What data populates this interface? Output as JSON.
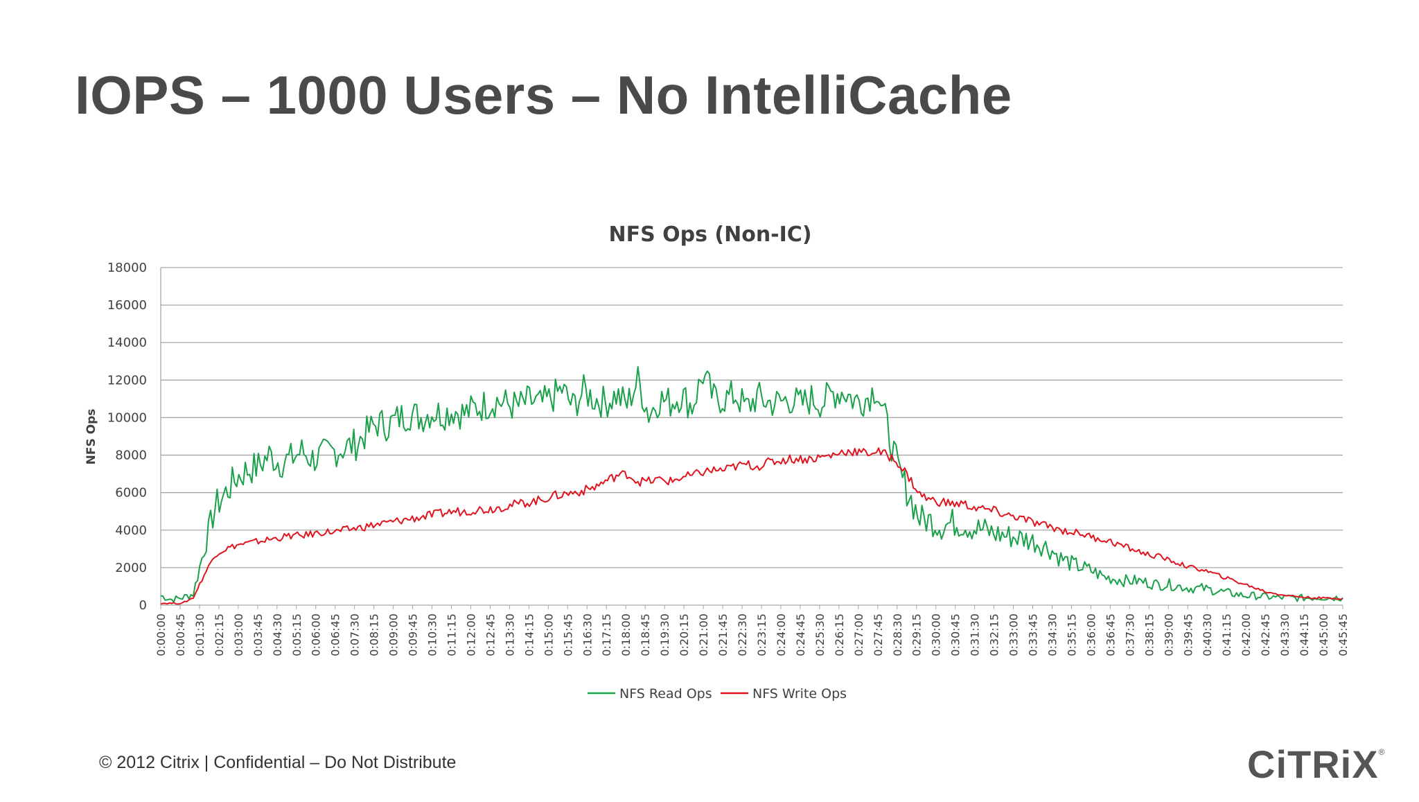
{
  "slide": {
    "title": "IOPS – 1000 Users – No IntelliCache",
    "footer": "© 2012 Citrix | Confidential – Do Not Distribute",
    "logo_text": "CiTRiX",
    "logo_mark": "®"
  },
  "colors": {
    "read": "#1aa04a",
    "write": "#e0141e",
    "grid": "#a6a6a6",
    "axis_text": "#404040",
    "title_text": "#4a4a4a"
  },
  "chart_data": {
    "type": "line",
    "title": "NFS Ops (Non-IC)",
    "xlabel": "",
    "ylabel": "NFS Ops",
    "ylim": [
      0,
      18000
    ],
    "yticks": [
      0,
      2000,
      4000,
      6000,
      8000,
      10000,
      12000,
      14000,
      16000,
      18000
    ],
    "grid": true,
    "legend_position": "bottom-center",
    "x_tick_labels": [
      "0:00:00",
      "0:00:45",
      "0:01:30",
      "0:02:15",
      "0:03:00",
      "0:03:45",
      "0:04:30",
      "0:05:15",
      "0:06:00",
      "0:06:45",
      "0:07:30",
      "0:08:15",
      "0:09:00",
      "0:09:45",
      "0:10:30",
      "0:11:15",
      "0:12:00",
      "0:12:45",
      "0:13:30",
      "0:14:15",
      "0:15:00",
      "0:15:45",
      "0:16:30",
      "0:17:15",
      "0:18:00",
      "0:18:45",
      "0:19:30",
      "0:20:15",
      "0:21:00",
      "0:21:45",
      "0:22:30",
      "0:23:15",
      "0:24:00",
      "0:24:45",
      "0:25:30",
      "0:26:15",
      "0:27:00",
      "0:27:45",
      "0:28:30",
      "0:29:15",
      "0:30:00",
      "0:30:45",
      "0:31:30",
      "0:32:15",
      "0:33:00",
      "0:33:45",
      "0:34:30",
      "0:35:15",
      "0:36:00",
      "0:36:45",
      "0:37:30",
      "0:38:15",
      "0:39:00",
      "0:39:45",
      "0:40:30",
      "0:41:15",
      "0:42:00",
      "0:42:45",
      "0:43:30",
      "0:44:15",
      "0:45:00",
      "0:45:45"
    ],
    "series": [
      {
        "name": "NFS Read Ops",
        "values": [
          500,
          300,
          400,
          600,
          3000,
          5200,
          6000,
          6800,
          7200,
          7400,
          8000,
          7600,
          7800,
          8200,
          7800,
          8000,
          8200,
          8400,
          8600,
          9200,
          9700,
          9600,
          10000,
          10200,
          10000,
          10300,
          10200,
          10400,
          10200,
          10500,
          10700,
          10900,
          10700,
          10600,
          10900,
          10700,
          11000,
          11500,
          10600,
          11400,
          11000,
          10800,
          11200,
          10700,
          12000,
          10200,
          11000,
          10800,
          11200,
          10600,
          12300,
          11000,
          11000,
          11200,
          10500,
          11100,
          10800,
          10800,
          11000,
          10700,
          11000,
          10800,
          11300,
          11400,
          10900,
          11000,
          11600,
          9500,
          7200,
          5900,
          4600,
          4500,
          4200,
          4400,
          4300,
          4100,
          4000,
          3800,
          3700,
          3600,
          3500,
          3300,
          3000,
          2500,
          2200,
          2000,
          1800,
          1500,
          1400,
          1300,
          1300,
          1200,
          1100,
          1100,
          1000,
          900,
          900,
          800,
          700,
          600,
          500,
          500,
          450,
          400,
          400,
          380,
          400,
          420,
          400,
          400
        ]
      },
      {
        "name": "NFS Write Ops",
        "values": [
          100,
          100,
          100,
          400,
          1600,
          2700,
          3000,
          3200,
          3300,
          3400,
          3500,
          3600,
          3700,
          3700,
          3800,
          3900,
          3900,
          4000,
          4100,
          4200,
          4300,
          4400,
          4500,
          4600,
          4700,
          4800,
          4900,
          5000,
          5000,
          5100,
          5100,
          5200,
          5300,
          5400,
          5500,
          5600,
          5800,
          5900,
          6000,
          6100,
          6300,
          6600,
          6900,
          7000,
          6600,
          6600,
          6700,
          6600,
          6800,
          6900,
          7100,
          7200,
          7200,
          7400,
          7500,
          7400,
          7600,
          7700,
          7800,
          7800,
          7800,
          7900,
          8000,
          8200,
          8200,
          8100,
          8200,
          8000,
          7600,
          6800,
          5900,
          5600,
          5500,
          5400,
          5400,
          5200,
          5100,
          5000,
          4800,
          4700,
          4500,
          4300,
          4200,
          4000,
          3900,
          3800,
          3600,
          3500,
          3300,
          3100,
          2900,
          2700,
          2600,
          2400,
          2200,
          2000,
          1900,
          1700,
          1500,
          1300,
          1100,
          900,
          700,
          600,
          500,
          450,
          400,
          380,
          360,
          350
        ]
      }
    ]
  }
}
